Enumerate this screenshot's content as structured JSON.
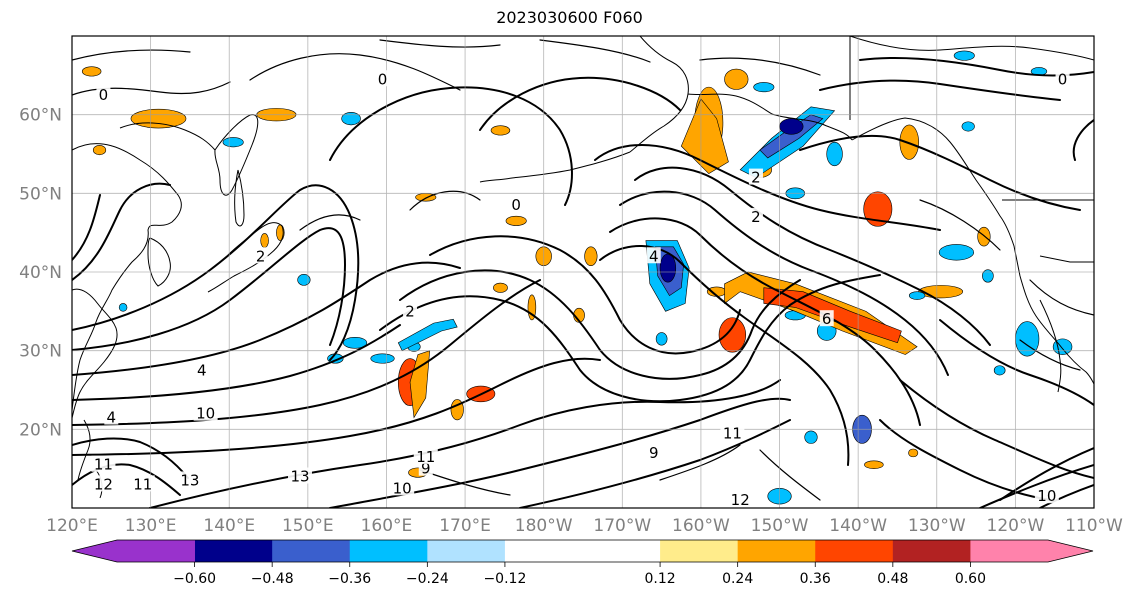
{
  "title": "2023030600 F060",
  "map": {
    "projection": "PlateCarree",
    "lon_range_deg_east": [
      120,
      250
    ],
    "lat_range_deg": [
      10,
      70
    ],
    "lat_ticks": [
      {
        "value": 20,
        "label": "20°N"
      },
      {
        "value": 30,
        "label": "30°N"
      },
      {
        "value": 40,
        "label": "40°N"
      },
      {
        "value": 50,
        "label": "50°N"
      },
      {
        "value": 60,
        "label": "60°N"
      }
    ],
    "lon_ticks": [
      {
        "value": 120,
        "label": "120°E"
      },
      {
        "value": 130,
        "label": "130°E"
      },
      {
        "value": 140,
        "label": "140°E"
      },
      {
        "value": 150,
        "label": "150°E"
      },
      {
        "value": 160,
        "label": "160°E"
      },
      {
        "value": 170,
        "label": "170°E"
      },
      {
        "value": 180,
        "label": "180°W"
      },
      {
        "value": 190,
        "label": "170°W"
      },
      {
        "value": 200,
        "label": "160°W"
      },
      {
        "value": 210,
        "label": "150°W"
      },
      {
        "value": 220,
        "label": "140°W"
      },
      {
        "value": 230,
        "label": "130°W"
      },
      {
        "value": 240,
        "label": "120°W"
      },
      {
        "value": 250,
        "label": "110°W"
      }
    ],
    "grid": true
  },
  "colorbar": {
    "orientation": "horizontal",
    "extend": "both",
    "boundaries": [
      -0.72,
      -0.6,
      -0.48,
      -0.36,
      -0.24,
      -0.12,
      0.12,
      0.24,
      0.36,
      0.48,
      0.6,
      0.72
    ],
    "colors": [
      "#9932cc",
      "#00008b",
      "#3a5fcd",
      "#00bfff",
      "#b0e2ff",
      "#ffffff",
      "#ffec8b",
      "#ffa500",
      "#ff4500",
      "#b22222",
      "#ff82ab"
    ],
    "tick_labels": [
      {
        "value": -0.6,
        "label": "−0.60"
      },
      {
        "value": -0.48,
        "label": "−0.48"
      },
      {
        "value": -0.36,
        "label": "−0.36"
      },
      {
        "value": -0.24,
        "label": "−0.24"
      },
      {
        "value": -0.12,
        "label": "−0.12"
      },
      {
        "value": 0.12,
        "label": "0.12"
      },
      {
        "value": 0.24,
        "label": "0.24"
      },
      {
        "value": 0.36,
        "label": "0.36"
      },
      {
        "value": 0.48,
        "label": "0.48"
      },
      {
        "value": 0.6,
        "label": "0.60"
      }
    ]
  },
  "contour_labels": [
    {
      "text": "0",
      "lon": 124,
      "lat": 62.5
    },
    {
      "text": "0",
      "lon": 159.5,
      "lat": 64.5
    },
    {
      "text": "0",
      "lon": 176.5,
      "lat": 48.5
    },
    {
      "text": "0",
      "lon": 246,
      "lat": 64.5
    },
    {
      "text": "2",
      "lon": 144,
      "lat": 42
    },
    {
      "text": "2",
      "lon": 163,
      "lat": 35
    },
    {
      "text": "2",
      "lon": 207,
      "lat": 52
    },
    {
      "text": "2",
      "lon": 207,
      "lat": 47
    },
    {
      "text": "4",
      "lon": 194,
      "lat": 42
    },
    {
      "text": "4",
      "lon": 125,
      "lat": 21.5
    },
    {
      "text": "4",
      "lon": 136.5,
      "lat": 27.5
    },
    {
      "text": "6",
      "lon": 216,
      "lat": 34
    },
    {
      "text": "9",
      "lon": 194,
      "lat": 17
    },
    {
      "text": "9",
      "lon": 165,
      "lat": 15
    },
    {
      "text": "10",
      "lon": 137,
      "lat": 22
    },
    {
      "text": "10",
      "lon": 162,
      "lat": 12.5
    },
    {
      "text": "10",
      "lon": 244,
      "lat": 11.5
    },
    {
      "text": "11",
      "lon": 124,
      "lat": 15.5
    },
    {
      "text": "11",
      "lon": 129,
      "lat": 13
    },
    {
      "text": "11",
      "lon": 165,
      "lat": 16.5
    },
    {
      "text": "11",
      "lon": 204,
      "lat": 19.5
    },
    {
      "text": "12",
      "lon": 124,
      "lat": 13
    },
    {
      "text": "12",
      "lon": 205,
      "lat": 11
    },
    {
      "text": "13",
      "lon": 135,
      "lat": 13.5
    },
    {
      "text": "13",
      "lon": 149,
      "lat": 14
    }
  ],
  "shaded_patches": [
    {
      "lon": 131,
      "lat": 59.5,
      "rx": 3.5,
      "ry": 1.2,
      "value": 0.3
    },
    {
      "lon": 146,
      "lat": 60,
      "rx": 2.5,
      "ry": 0.8,
      "value": 0.3
    },
    {
      "lon": 122.5,
      "lat": 65.5,
      "rx": 1.2,
      "ry": 0.6,
      "value": 0.3
    },
    {
      "lon": 201,
      "lat": 59,
      "rx": 1.8,
      "ry": 4.5,
      "value": 0.3
    },
    {
      "lon": 204.5,
      "lat": 64.5,
      "rx": 1.5,
      "ry": 1.3,
      "value": 0.3
    },
    {
      "lon": 226.5,
      "lat": 56.5,
      "rx": 1.2,
      "ry": 2.2,
      "value": 0.3
    },
    {
      "lon": 222.5,
      "lat": 48,
      "rx": 1.8,
      "ry": 2.2,
      "value": 0.42
    },
    {
      "lon": 207.5,
      "lat": 53,
      "rx": 1.5,
      "ry": 1,
      "value": 0.3
    },
    {
      "lon": 174.5,
      "lat": 58,
      "rx": 1.2,
      "ry": 0.6,
      "value": 0.3
    },
    {
      "lon": 165,
      "lat": 49.5,
      "rx": 1.3,
      "ry": 0.5,
      "value": 0.3
    },
    {
      "lon": 178.5,
      "lat": 35.5,
      "rx": 0.5,
      "ry": 1.6,
      "value": 0.3
    },
    {
      "lon": 180,
      "lat": 42,
      "rx": 1,
      "ry": 1.2,
      "value": 0.3
    },
    {
      "lon": 186,
      "lat": 42,
      "rx": 0.8,
      "ry": 1.2,
      "value": 0.3
    },
    {
      "lon": 174.5,
      "lat": 38,
      "rx": 0.9,
      "ry": 0.6,
      "value": 0.3
    },
    {
      "lon": 184.5,
      "lat": 34.5,
      "rx": 0.7,
      "ry": 0.9,
      "value": 0.3
    },
    {
      "lon": 172,
      "lat": 24.5,
      "rx": 1.8,
      "ry": 1,
      "value": 0.42
    },
    {
      "lon": 163,
      "lat": 26,
      "rx": 1.5,
      "ry": 3,
      "value": 0.42
    },
    {
      "lon": 169,
      "lat": 22.5,
      "rx": 0.8,
      "ry": 1.3,
      "value": 0.3
    },
    {
      "lon": 164,
      "lat": 14.5,
      "rx": 1.2,
      "ry": 0.6,
      "value": 0.3
    },
    {
      "lon": 204,
      "lat": 32,
      "rx": 1.7,
      "ry": 2.2,
      "value": 0.42
    },
    {
      "lon": 202,
      "lat": 37.5,
      "rx": 1.2,
      "ry": 0.6,
      "value": 0.3
    },
    {
      "lon": 230.5,
      "lat": 37.5,
      "rx": 2.8,
      "ry": 0.8,
      "value": 0.3
    },
    {
      "lon": 236,
      "lat": 44.5,
      "rx": 0.8,
      "ry": 1.2,
      "value": 0.3
    },
    {
      "lon": 146.5,
      "lat": 45,
      "rx": 0.5,
      "ry": 1,
      "value": 0.3
    },
    {
      "lon": 144.5,
      "lat": 44,
      "rx": 0.5,
      "ry": 0.9,
      "value": 0.3
    },
    {
      "lon": 176.5,
      "lat": 46.5,
      "rx": 1.3,
      "ry": 0.6,
      "value": 0.3
    },
    {
      "lon": 123.5,
      "lat": 55.5,
      "rx": 0.8,
      "ry": 0.6,
      "value": 0.3
    },
    {
      "lon": 222,
      "lat": 15.5,
      "rx": 1.2,
      "ry": 0.5,
      "value": 0.3
    },
    {
      "lon": 227,
      "lat": 17,
      "rx": 0.6,
      "ry": 0.5,
      "value": 0.3
    },
    {
      "lon": 208,
      "lat": 63.5,
      "rx": 1.3,
      "ry": 0.6,
      "value": -0.3
    },
    {
      "lon": 217,
      "lat": 55,
      "rx": 1,
      "ry": 1.5,
      "value": -0.3
    },
    {
      "lon": 212,
      "lat": 50,
      "rx": 1.2,
      "ry": 0.7,
      "value": -0.3
    },
    {
      "lon": 232.5,
      "lat": 42.5,
      "rx": 2.2,
      "ry": 1,
      "value": -0.3
    },
    {
      "lon": 227.5,
      "lat": 37,
      "rx": 1,
      "ry": 0.5,
      "value": -0.3
    },
    {
      "lon": 236.5,
      "lat": 39.5,
      "rx": 0.7,
      "ry": 0.8,
      "value": -0.3
    },
    {
      "lon": 209,
      "lat": 37.5,
      "rx": 1.2,
      "ry": 0.5,
      "value": -0.3
    },
    {
      "lon": 212,
      "lat": 34.5,
      "rx": 1.3,
      "ry": 0.6,
      "value": -0.3
    },
    {
      "lon": 216,
      "lat": 32.5,
      "rx": 1.2,
      "ry": 1.2,
      "value": -0.3
    },
    {
      "lon": 220.5,
      "lat": 20,
      "rx": 1.2,
      "ry": 1.8,
      "value": -0.42
    },
    {
      "lon": 214,
      "lat": 19,
      "rx": 0.8,
      "ry": 0.8,
      "value": -0.3
    },
    {
      "lon": 210,
      "lat": 11.5,
      "rx": 1.5,
      "ry": 1,
      "value": -0.3
    },
    {
      "lon": 195,
      "lat": 31.5,
      "rx": 0.7,
      "ry": 0.8,
      "value": -0.3
    },
    {
      "lon": 156,
      "lat": 31,
      "rx": 1.5,
      "ry": 0.7,
      "value": -0.3
    },
    {
      "lon": 153.5,
      "lat": 29,
      "rx": 1,
      "ry": 0.6,
      "value": -0.3
    },
    {
      "lon": 163.5,
      "lat": 30.5,
      "rx": 0.8,
      "ry": 0.6,
      "value": -0.3
    },
    {
      "lon": 159.5,
      "lat": 29,
      "rx": 1.5,
      "ry": 0.6,
      "value": -0.3
    },
    {
      "lon": 155.5,
      "lat": 59.5,
      "rx": 1.2,
      "ry": 0.8,
      "value": -0.3
    },
    {
      "lon": 140.5,
      "lat": 56.5,
      "rx": 1.3,
      "ry": 0.6,
      "value": -0.3
    },
    {
      "lon": 149.5,
      "lat": 39,
      "rx": 0.8,
      "ry": 0.7,
      "value": -0.3
    },
    {
      "lon": 241.5,
      "lat": 31.5,
      "rx": 1.5,
      "ry": 2.2,
      "value": -0.3
    },
    {
      "lon": 246,
      "lat": 30.5,
      "rx": 1.2,
      "ry": 1,
      "value": -0.3
    },
    {
      "lon": 238,
      "lat": 27.5,
      "rx": 0.7,
      "ry": 0.6,
      "value": -0.3
    },
    {
      "lon": 234,
      "lat": 58.5,
      "rx": 0.8,
      "ry": 0.6,
      "value": -0.3
    },
    {
      "lon": 233.5,
      "lat": 67.5,
      "rx": 1.3,
      "ry": 0.6,
      "value": -0.3
    },
    {
      "lon": 243,
      "lat": 65.5,
      "rx": 1,
      "ry": 0.5,
      "value": -0.3
    },
    {
      "lon": 126.5,
      "lat": 35.5,
      "rx": 0.5,
      "ry": 0.5,
      "value": -0.3
    }
  ],
  "shaded_polygons": [
    {
      "value": 0.3,
      "points": [
        [
          203,
          36
        ],
        [
          205,
          37.5
        ],
        [
          212,
          35
        ],
        [
          218,
          32.5
        ],
        [
          226,
          29.5
        ],
        [
          227.5,
          30.5
        ],
        [
          221,
          35
        ],
        [
          212,
          38.5
        ],
        [
          206,
          40
        ],
        [
          203,
          38.5
        ]
      ]
    },
    {
      "value": 0.42,
      "points": [
        [
          208,
          36
        ],
        [
          212,
          35.5
        ],
        [
          219,
          33
        ],
        [
          225,
          31
        ],
        [
          225.5,
          32.5
        ],
        [
          219,
          35
        ],
        [
          213,
          37.5
        ],
        [
          208,
          38
        ]
      ]
    },
    {
      "value": 0.3,
      "points": [
        [
          197.5,
          56
        ],
        [
          201,
          52.5
        ],
        [
          203.5,
          54
        ],
        [
          202,
          59.5
        ],
        [
          200,
          62
        ]
      ]
    },
    {
      "value": 0.3,
      "points": [
        [
          163,
          26
        ],
        [
          164,
          29.5
        ],
        [
          165.5,
          30
        ],
        [
          165,
          24
        ],
        [
          163.5,
          21.5
        ]
      ]
    },
    {
      "value": -0.3,
      "points": [
        [
          205,
          53
        ],
        [
          209,
          57
        ],
        [
          214,
          61
        ],
        [
          217,
          60.5
        ],
        [
          213,
          56
        ],
        [
          207,
          52
        ]
      ]
    },
    {
      "value": -0.3,
      "points": [
        [
          193,
          44
        ],
        [
          193.5,
          38.5
        ],
        [
          195.5,
          35
        ],
        [
          198,
          36
        ],
        [
          198.5,
          40.5
        ],
        [
          197,
          44
        ]
      ]
    },
    {
      "value": -0.42,
      "points": [
        [
          194.2,
          43.2
        ],
        [
          194.5,
          39.5
        ],
        [
          196,
          37
        ],
        [
          197.5,
          38
        ],
        [
          197.8,
          41
        ],
        [
          196.5,
          43.2
        ]
      ]
    },
    {
      "value": -0.42,
      "points": [
        [
          207.5,
          55.5
        ],
        [
          211,
          58
        ],
        [
          214,
          60
        ],
        [
          215.5,
          59.5
        ],
        [
          212.5,
          57
        ],
        [
          208.5,
          54.5
        ]
      ]
    },
    {
      "value": -0.3,
      "points": [
        [
          162,
          30
        ],
        [
          167,
          32.5
        ],
        [
          169,
          33
        ],
        [
          168.5,
          34
        ],
        [
          166,
          33.5
        ],
        [
          161.5,
          31
        ]
      ]
    }
  ],
  "dark_patches": [
    {
      "lon": 195.8,
      "lat": 40.5,
      "rx": 1,
      "ry": 1.8
    },
    {
      "lon": 211.5,
      "lat": 58.5,
      "rx": 1.5,
      "ry": 1
    }
  ]
}
